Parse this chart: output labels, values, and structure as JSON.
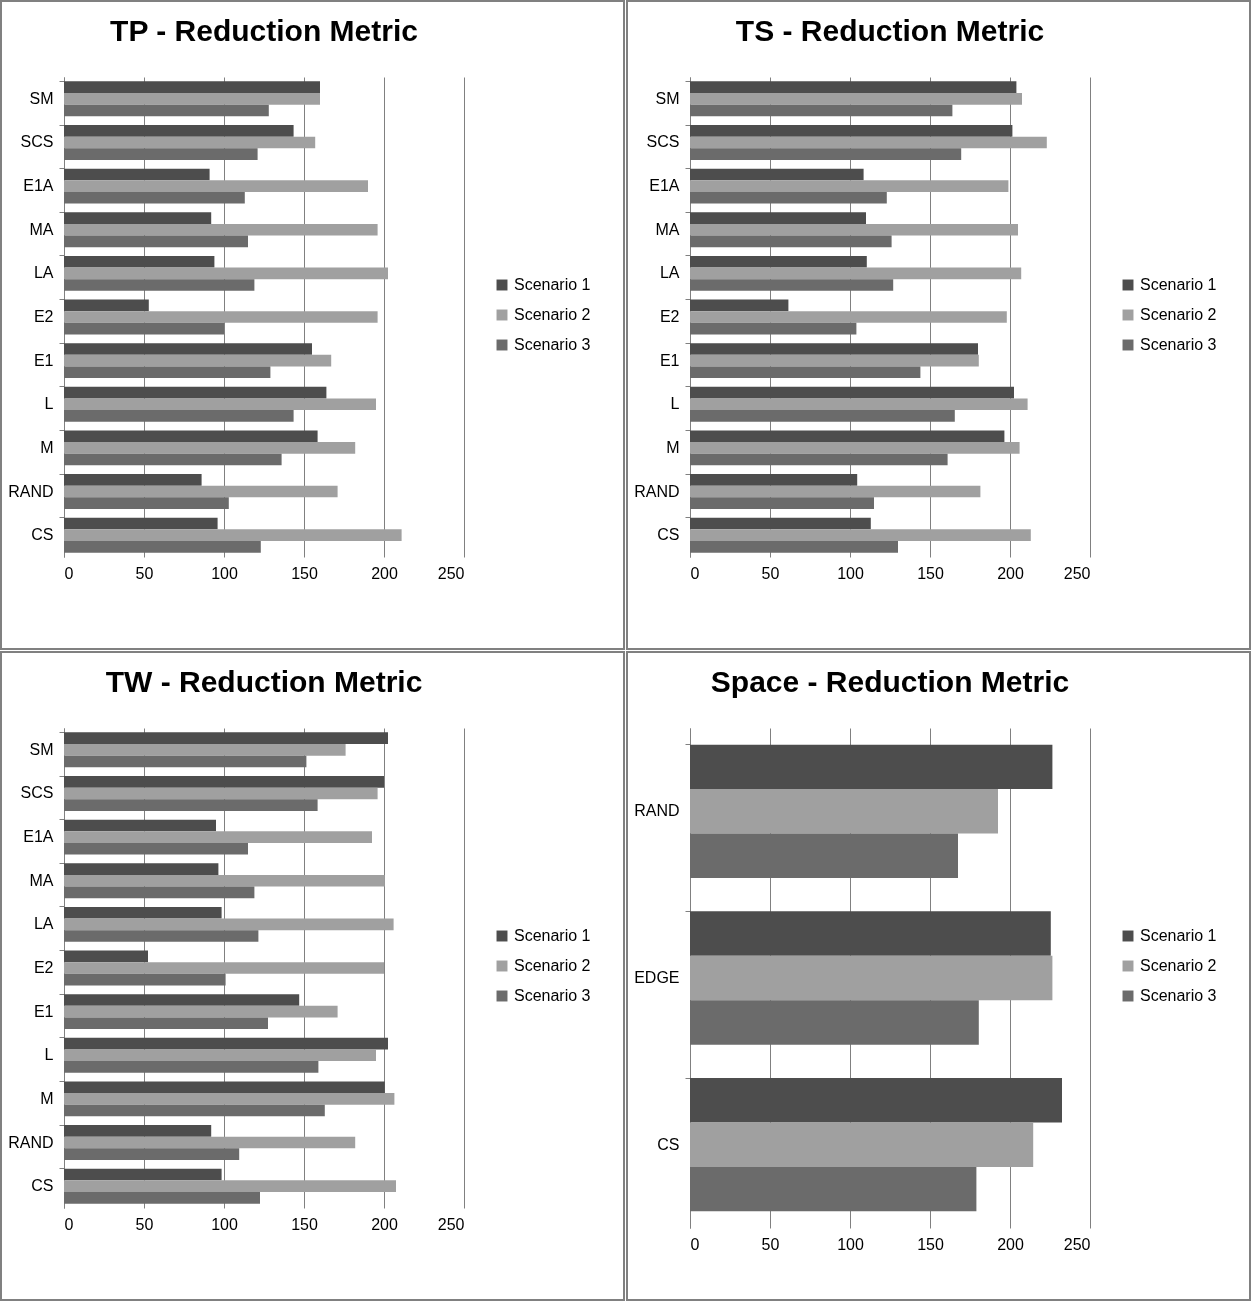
{
  "chart_data": [
    {
      "type": "bar",
      "orientation": "horizontal",
      "title": "TP - Reduction Metric",
      "categories": [
        "SM",
        "SCS",
        "E1A",
        "MA",
        "LA",
        "E2",
        "E1",
        "L",
        "M",
        "RAND",
        "CS"
      ],
      "xlim": [
        0,
        250
      ],
      "xticks": [
        0,
        50,
        100,
        150,
        200,
        250
      ],
      "grid": "x",
      "legend": "right",
      "series": [
        {
          "name": "Scenario 1",
          "color": "#4d4d4d",
          "values": [
            160,
            143.5,
            91,
            92,
            94,
            53,
            155,
            164,
            158.5,
            86,
            96
          ]
        },
        {
          "name": "Scenario 2",
          "color": "#a0a0a0",
          "values": [
            160,
            157,
            190,
            196,
            202.5,
            196,
            167,
            195,
            182,
            171,
            211
          ]
        },
        {
          "name": "Scenario 3",
          "color": "#6b6b6b",
          "values": [
            128,
            121,
            113,
            115,
            119,
            100,
            129,
            143.5,
            136,
            103,
            123
          ]
        }
      ]
    },
    {
      "type": "bar",
      "orientation": "horizontal",
      "title": "TS - Reduction Metric",
      "categories": [
        "SM",
        "SCS",
        "E1A",
        "MA",
        "LA",
        "E2",
        "E1",
        "L",
        "M",
        "RAND",
        "CS"
      ],
      "xlim": [
        0,
        250
      ],
      "xticks": [
        0,
        50,
        100,
        150,
        200,
        250
      ],
      "grid": "x",
      "legend": "right",
      "series": [
        {
          "name": "Scenario 1",
          "color": "#4d4d4d",
          "values": [
            204,
            201.5,
            108.5,
            110,
            110.5,
            61.5,
            180,
            202.5,
            196.5,
            104.5,
            113
          ]
        },
        {
          "name": "Scenario 2",
          "color": "#a0a0a0",
          "values": [
            207.5,
            223,
            199,
            205,
            207,
            198,
            180.5,
            211,
            206,
            181.5,
            213
          ]
        },
        {
          "name": "Scenario 3",
          "color": "#6b6b6b",
          "values": [
            164,
            169.5,
            123,
            126,
            127,
            104,
            144,
            165.5,
            161,
            115,
            130
          ]
        }
      ]
    },
    {
      "type": "bar",
      "orientation": "horizontal",
      "title": "TW - Reduction Metric",
      "categories": [
        "SM",
        "SCS",
        "E1A",
        "MA",
        "LA",
        "E2",
        "E1",
        "L",
        "M",
        "RAND",
        "CS"
      ],
      "xlim": [
        0,
        250
      ],
      "xticks": [
        0,
        50,
        100,
        150,
        200,
        250
      ],
      "grid": "x",
      "legend": "right",
      "series": [
        {
          "name": "Scenario 1",
          "color": "#4d4d4d",
          "values": [
            202.5,
            200,
            95,
            96.5,
            98.5,
            52.5,
            147,
            202.5,
            200.5,
            92,
            98.5
          ]
        },
        {
          "name": "Scenario 2",
          "color": "#a0a0a0",
          "values": [
            176,
            196,
            192.5,
            200.5,
            206,
            200,
            171,
            195,
            206.5,
            182,
            207.5
          ]
        },
        {
          "name": "Scenario 3",
          "color": "#6b6b6b",
          "values": [
            151.5,
            158.5,
            115,
            119,
            121.5,
            101,
            127.5,
            159,
            163,
            109.5,
            122.5
          ]
        }
      ]
    },
    {
      "type": "bar",
      "orientation": "horizontal",
      "title": "Space - Reduction Metric",
      "categories": [
        "RAND",
        "EDGE",
        "CS"
      ],
      "xlim": [
        0,
        250
      ],
      "xticks": [
        0,
        50,
        100,
        150,
        200,
        250
      ],
      "grid": "x",
      "legend": "right",
      "series": [
        {
          "name": "Scenario 1",
          "color": "#4d4d4d",
          "values": [
            226.5,
            225.5,
            232.5
          ]
        },
        {
          "name": "Scenario 2",
          "color": "#a0a0a0",
          "values": [
            192.5,
            226.5,
            214.5
          ]
        },
        {
          "name": "Scenario 3",
          "color": "#6b6b6b",
          "values": [
            167.5,
            180.5,
            179
          ]
        }
      ]
    }
  ]
}
